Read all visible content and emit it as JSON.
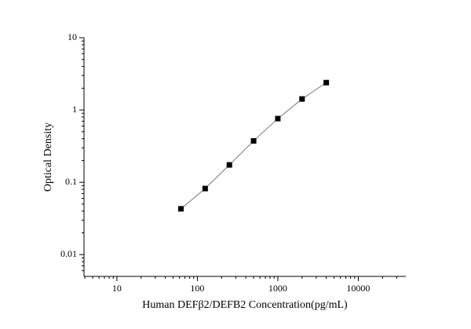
{
  "chart_data": {
    "type": "line",
    "x_label": "Human DEFβ2/DEFB2 Concentration(pg/mL)",
    "y_label": "Optical Density",
    "x": [
      62.5,
      125,
      250,
      500,
      1000,
      2000,
      4000
    ],
    "series": [
      {
        "color": "#000000",
        "values": [
          0.043,
          0.082,
          0.174,
          0.374,
          0.76,
          1.42,
          2.39
        ]
      }
    ],
    "xlim": [
      3.9,
      39000
    ],
    "xticks": [
      10,
      100,
      1000,
      10000
    ],
    "ylim": [
      0.005,
      10
    ],
    "yticks": [
      0.01,
      0.1,
      1,
      10
    ],
    "xscale": "log",
    "yscale": "log",
    "grid": false
  }
}
